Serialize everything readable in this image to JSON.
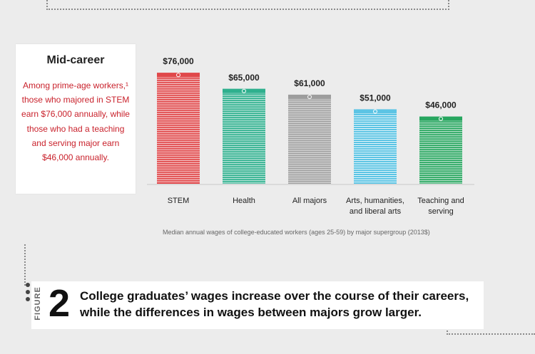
{
  "card": {
    "title": "Mid-career",
    "body": "Among prime-age workers,¹ those who majored in STEM earn $76,000 annually, while those who had a teaching and serving major earn $46,000 annually."
  },
  "chart_data": {
    "type": "bar",
    "categories": [
      "STEM",
      "Health",
      "All majors",
      "Arts, humanities, and liberal arts",
      "Teaching and serving"
    ],
    "category_lines": [
      [
        "STEM"
      ],
      [
        "Health"
      ],
      [
        "All majors"
      ],
      [
        "Arts, humanities,",
        "and liberal arts"
      ],
      [
        "Teaching and",
        "serving"
      ]
    ],
    "values": [
      76000,
      65000,
      61000,
      51000,
      46000
    ],
    "value_labels": [
      "$76,000",
      "$65,000",
      "$61,000",
      "$51,000",
      "$46,000"
    ],
    "colors": [
      "#e0484a",
      "#2fb08e",
      "#9d9d9d",
      "#5cc4e4",
      "#27a65f"
    ],
    "title": "",
    "xlabel": "",
    "ylabel": "",
    "ylim": [
      0,
      80000
    ],
    "grid": false,
    "legend": "none"
  },
  "caption": "Median annual wages of college-educated workers (ages 25-59) by major supergroup (2013$)",
  "figure": {
    "label": "FIGURE",
    "number": "2",
    "title": "College graduates’ wages increase over the course of their careers, while the differences in wages between majors grow larger."
  }
}
